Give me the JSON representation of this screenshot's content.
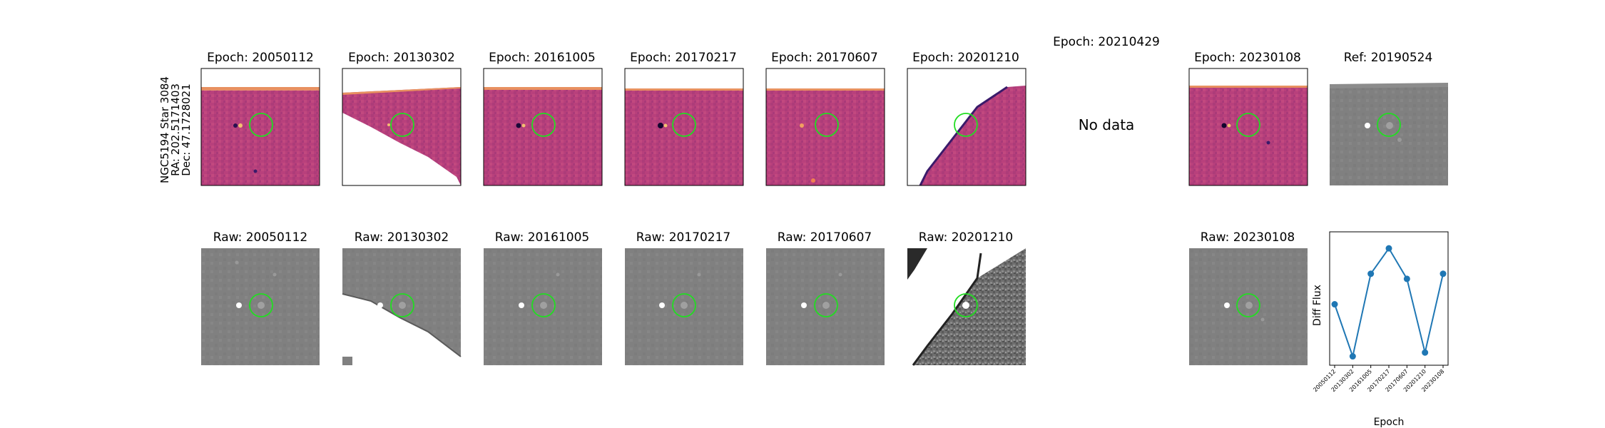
{
  "object": {
    "name": "NGC5194 Star 3084",
    "ra": "RA: 202.5171403",
    "dec": "Dec: 47.1728021"
  },
  "diff_panels": [
    {
      "title": "Epoch: 20050112",
      "state": "image",
      "stretch": "diff"
    },
    {
      "title": "Epoch: 20130302",
      "state": "image",
      "stretch": "diff",
      "masked": "lower-left"
    },
    {
      "title": "Epoch: 20161005",
      "state": "image",
      "stretch": "diff"
    },
    {
      "title": "Epoch: 20170217",
      "state": "image",
      "stretch": "diff"
    },
    {
      "title": "Epoch: 20170607",
      "state": "image",
      "stretch": "diff"
    },
    {
      "title": "Epoch: 20201210",
      "state": "image",
      "stretch": "diff",
      "masked": "upper-left"
    },
    {
      "title": "Epoch: 20210429",
      "state": "nodata",
      "message": "No data"
    },
    {
      "title": "Epoch: 20230108",
      "state": "image",
      "stretch": "diff"
    },
    {
      "title": "Ref: 20190524",
      "state": "image",
      "stretch": "gray"
    }
  ],
  "raw_panels": [
    {
      "title": "Raw: 20050112",
      "state": "image"
    },
    {
      "title": "Raw: 20130302",
      "state": "image",
      "masked": "lower-left"
    },
    {
      "title": "Raw: 20161005",
      "state": "image"
    },
    {
      "title": "Raw: 20170217",
      "state": "image"
    },
    {
      "title": "Raw: 20170607",
      "state": "image"
    },
    {
      "title": "Raw: 20201210",
      "state": "image",
      "masked": "upper-left"
    },
    {
      "title": "",
      "state": "empty"
    },
    {
      "title": "Raw: 20230108",
      "state": "image"
    }
  ],
  "colors": {
    "target_circle": "#22dd22",
    "series": "#1f77b4",
    "diff_base": "#b8407c",
    "diff_edge": "#f0a070",
    "raw_base": "#808080"
  },
  "chart_data": {
    "type": "line",
    "x": [
      "20050112",
      "20130302",
      "20161005",
      "20170217",
      "20170607",
      "20201210",
      "20230108"
    ],
    "series": [
      {
        "values": [
          0.43,
          0.02,
          0.67,
          0.87,
          0.63,
          0.05,
          0.67
        ]
      }
    ],
    "xlabel": "Epoch",
    "ylabel": "Diff Flux",
    "ylim": [
      -0.05,
      1.0
    ],
    "grid": false,
    "markers": true,
    "yticks": false
  }
}
